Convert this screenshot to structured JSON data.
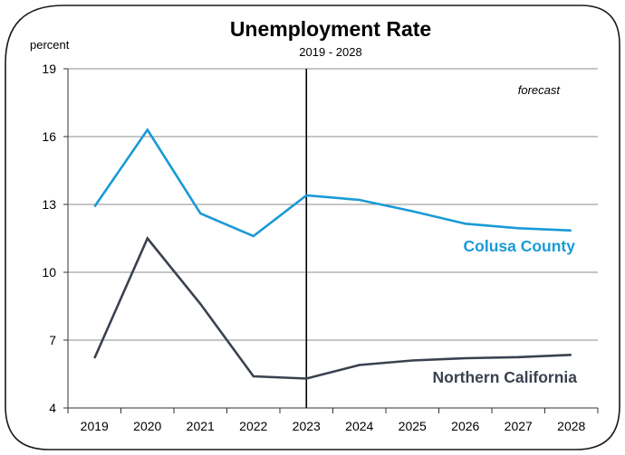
{
  "chart_data": {
    "type": "line",
    "title": "Unemployment Rate",
    "subtitle": "2019 - 2028",
    "ylabel": "percent",
    "xlabel": "",
    "ylim": [
      4,
      19
    ],
    "yticks": [
      4,
      7,
      10,
      13,
      16,
      19
    ],
    "categories": [
      "2019",
      "2020",
      "2021",
      "2022",
      "2023",
      "2024",
      "2025",
      "2026",
      "2027",
      "2028"
    ],
    "annotation": "forecast",
    "forecast_start": "2023",
    "grid": true,
    "series": [
      {
        "name": "Colusa County",
        "color": "#1a9ad6",
        "values": [
          12.9,
          16.3,
          12.6,
          11.6,
          13.4,
          13.2,
          12.7,
          12.15,
          11.95,
          11.85
        ]
      },
      {
        "name": "Northern California",
        "color": "#3a414f",
        "values": [
          6.2,
          11.5,
          8.6,
          5.4,
          5.3,
          5.9,
          6.1,
          6.2,
          6.25,
          6.35
        ]
      }
    ]
  }
}
